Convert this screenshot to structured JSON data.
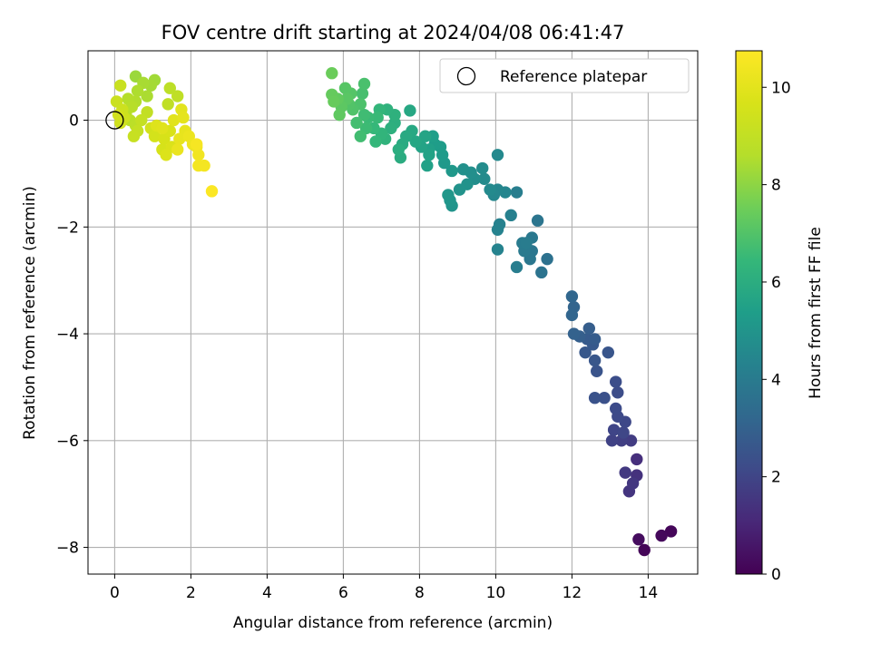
{
  "chart_data": {
    "type": "scatter",
    "title": "FOV centre drift starting at 2024/04/08 06:41:47",
    "xlabel": "Angular distance from reference (arcmin)",
    "ylabel": "Rotation from reference (arcmin)",
    "xlim": [
      -0.7,
      15.3
    ],
    "ylim": [
      -8.5,
      1.3
    ],
    "xticks": [
      0,
      2,
      4,
      6,
      8,
      10,
      12,
      14
    ],
    "yticks": [
      -8,
      -6,
      -4,
      -2,
      0
    ],
    "tick_labels_x": [
      "0",
      "2",
      "4",
      "6",
      "8",
      "10",
      "12",
      "14"
    ],
    "tick_labels_y": [
      "−8",
      "−6",
      "−4",
      "−2",
      "0"
    ],
    "grid": true,
    "legend": {
      "location": "top-right",
      "entries": [
        "Reference platepar"
      ]
    },
    "colorbar": {
      "label": "Hours from first FF file",
      "range": [
        0,
        10.75
      ],
      "ticks": [
        0,
        2,
        4,
        6,
        8,
        10
      ],
      "tick_labels": [
        "0",
        "2",
        "4",
        "6",
        "8",
        "10"
      ],
      "colormap": "viridis"
    },
    "reference_point": {
      "x": 0,
      "y": 0,
      "label": "Reference platepar"
    },
    "points": [
      [
        13.9,
        -8.05,
        0.1
      ],
      [
        14.6,
        -7.7,
        0.15
      ],
      [
        14.35,
        -7.78,
        0.2
      ],
      [
        13.75,
        -7.85,
        0.3
      ],
      [
        13.7,
        -6.35,
        1.3
      ],
      [
        13.7,
        -6.65,
        1.4
      ],
      [
        13.5,
        -6.95,
        1.5
      ],
      [
        13.6,
        -6.8,
        1.55
      ],
      [
        13.4,
        -6.6,
        1.6
      ],
      [
        13.55,
        -6.0,
        1.7
      ],
      [
        13.3,
        -6.0,
        1.8
      ],
      [
        13.05,
        -6.0,
        1.9
      ],
      [
        13.1,
        -5.8,
        2.0
      ],
      [
        13.35,
        -5.85,
        2.05
      ],
      [
        13.4,
        -5.65,
        2.1
      ],
      [
        13.2,
        -5.55,
        2.15
      ],
      [
        13.15,
        -5.4,
        2.2
      ],
      [
        13.2,
        -5.1,
        2.25
      ],
      [
        13.15,
        -4.9,
        2.3
      ],
      [
        12.85,
        -5.2,
        2.4
      ],
      [
        12.6,
        -5.2,
        2.45
      ],
      [
        12.65,
        -4.7,
        2.5
      ],
      [
        12.95,
        -4.35,
        2.55
      ],
      [
        12.6,
        -4.5,
        2.6
      ],
      [
        12.35,
        -4.35,
        2.65
      ],
      [
        12.55,
        -4.2,
        2.7
      ],
      [
        12.4,
        -4.1,
        2.75
      ],
      [
        12.6,
        -4.1,
        2.8
      ],
      [
        12.45,
        -3.9,
        2.85
      ],
      [
        12.2,
        -4.05,
        2.9
      ],
      [
        12.05,
        -4.0,
        3.0
      ],
      [
        12.05,
        -3.5,
        3.1
      ],
      [
        12.0,
        -3.65,
        3.15
      ],
      [
        12.0,
        -3.3,
        3.2
      ],
      [
        11.35,
        -2.6,
        3.6
      ],
      [
        11.2,
        -2.85,
        3.7
      ],
      [
        11.1,
        -1.88,
        3.75
      ],
      [
        10.95,
        -2.45,
        3.8
      ],
      [
        10.9,
        -2.6,
        3.85
      ],
      [
        10.95,
        -2.2,
        3.9
      ],
      [
        10.75,
        -2.45,
        3.95
      ],
      [
        10.7,
        -2.3,
        4.0
      ],
      [
        10.8,
        -2.3,
        4.05
      ],
      [
        10.55,
        -2.75,
        4.1
      ],
      [
        10.55,
        -1.35,
        4.15
      ],
      [
        10.4,
        -1.78,
        4.2
      ],
      [
        10.1,
        -1.95,
        4.25
      ],
      [
        10.05,
        -2.05,
        4.3
      ],
      [
        10.05,
        -2.42,
        4.35
      ],
      [
        10.25,
        -1.35,
        4.4
      ],
      [
        10.05,
        -1.3,
        4.45
      ],
      [
        9.95,
        -1.4,
        4.5
      ],
      [
        10.05,
        -0.65,
        4.55
      ],
      [
        9.85,
        -1.3,
        4.6
      ],
      [
        9.7,
        -1.1,
        4.65
      ],
      [
        9.65,
        -0.9,
        4.7
      ],
      [
        9.45,
        -1.1,
        4.75
      ],
      [
        9.35,
        -0.98,
        4.8
      ],
      [
        9.15,
        -0.92,
        4.85
      ],
      [
        9.25,
        -1.2,
        4.9
      ],
      [
        9.05,
        -1.3,
        4.95
      ],
      [
        8.85,
        -1.6,
        5.0
      ],
      [
        8.8,
        -1.5,
        5.05
      ],
      [
        8.75,
        -1.4,
        5.1
      ],
      [
        8.85,
        -0.95,
        5.15
      ],
      [
        8.65,
        -0.8,
        5.2
      ],
      [
        8.6,
        -0.65,
        5.25
      ],
      [
        8.55,
        -0.5,
        5.3
      ],
      [
        8.4,
        -0.45,
        5.35
      ],
      [
        8.35,
        -0.3,
        5.4
      ],
      [
        8.25,
        -0.55,
        5.45
      ],
      [
        8.2,
        -0.85,
        5.5
      ],
      [
        8.25,
        -0.65,
        5.55
      ],
      [
        8.05,
        -0.5,
        5.6
      ],
      [
        8.15,
        -0.3,
        5.65
      ],
      [
        7.9,
        -0.4,
        5.7
      ],
      [
        7.75,
        0.18,
        5.75
      ],
      [
        7.8,
        -0.2,
        5.8
      ],
      [
        7.65,
        -0.3,
        5.85
      ],
      [
        7.55,
        -0.45,
        5.9
      ],
      [
        7.5,
        -0.7,
        5.95
      ],
      [
        7.45,
        -0.55,
        6.0
      ],
      [
        7.35,
        -0.05,
        6.05
      ],
      [
        7.25,
        -0.15,
        6.1
      ],
      [
        7.35,
        0.1,
        6.15
      ],
      [
        7.15,
        0.2,
        6.2
      ],
      [
        7.1,
        -0.35,
        6.25
      ],
      [
        7.0,
        -0.25,
        6.3
      ],
      [
        6.95,
        0.2,
        6.35
      ],
      [
        6.85,
        -0.4,
        6.4
      ],
      [
        6.8,
        -0.15,
        6.45
      ],
      [
        6.9,
        0.05,
        6.5
      ],
      [
        6.65,
        0.05,
        6.55
      ],
      [
        6.6,
        -0.15,
        6.6
      ],
      [
        6.55,
        0.1,
        6.65
      ],
      [
        6.45,
        -0.3,
        6.7
      ],
      [
        6.35,
        -0.05,
        6.75
      ],
      [
        6.5,
        0.5,
        6.8
      ],
      [
        6.55,
        0.68,
        6.85
      ],
      [
        6.45,
        0.3,
        6.9
      ],
      [
        6.25,
        0.2,
        6.95
      ],
      [
        6.15,
        0.3,
        7.0
      ],
      [
        6.2,
        0.5,
        7.05
      ],
      [
        6.05,
        0.6,
        7.1
      ],
      [
        6.1,
        0.4,
        7.15
      ],
      [
        5.95,
        0.25,
        7.2
      ],
      [
        5.9,
        0.1,
        7.25
      ],
      [
        5.85,
        0.4,
        7.3
      ],
      [
        5.7,
        0.48,
        7.35
      ],
      [
        5.75,
        0.35,
        7.4
      ],
      [
        5.7,
        0.88,
        7.45
      ],
      [
        0.55,
        0.82,
        8.2
      ],
      [
        1.05,
        0.75,
        8.3
      ],
      [
        0.95,
        0.65,
        8.35
      ],
      [
        0.75,
        0.7,
        8.4
      ],
      [
        0.85,
        0.45,
        8.45
      ],
      [
        0.6,
        0.55,
        8.5
      ],
      [
        0.55,
        0.35,
        8.55
      ],
      [
        0.35,
        0.4,
        8.6
      ],
      [
        0.45,
        0.25,
        8.65
      ],
      [
        0.3,
        0.15,
        8.7
      ],
      [
        0.4,
        0.0,
        8.75
      ],
      [
        0.55,
        -0.1,
        8.8
      ],
      [
        1.45,
        0.6,
        8.85
      ],
      [
        1.65,
        0.45,
        8.9
      ],
      [
        1.4,
        0.3,
        8.95
      ],
      [
        0.85,
        0.15,
        9.0
      ],
      [
        0.7,
        0.0,
        9.05
      ],
      [
        0.6,
        -0.2,
        9.1
      ],
      [
        0.5,
        -0.3,
        9.15
      ],
      [
        0.15,
        0.65,
        9.2
      ],
      [
        0.05,
        0.35,
        9.25
      ],
      [
        0.2,
        0.2,
        9.3
      ],
      [
        0.25,
        0.05,
        9.35
      ],
      [
        0.15,
        -0.05,
        9.4
      ],
      [
        0.1,
        0.1,
        9.45
      ],
      [
        0.95,
        -0.15,
        9.5
      ],
      [
        1.05,
        -0.3,
        9.55
      ],
      [
        1.25,
        -0.55,
        9.6
      ],
      [
        1.3,
        -0.35,
        9.65
      ],
      [
        1.45,
        -0.2,
        9.7
      ],
      [
        1.5,
        -0.5,
        9.75
      ],
      [
        1.35,
        -0.65,
        9.8
      ],
      [
        1.1,
        -0.1,
        9.85
      ],
      [
        1.25,
        -0.15,
        9.9
      ],
      [
        1.55,
        0.0,
        9.95
      ],
      [
        1.75,
        0.2,
        10.0
      ],
      [
        1.8,
        0.05,
        10.05
      ],
      [
        1.85,
        -0.2,
        10.1
      ],
      [
        1.7,
        -0.35,
        10.15
      ],
      [
        1.65,
        -0.55,
        10.2
      ],
      [
        1.95,
        -0.3,
        10.25
      ],
      [
        2.05,
        -0.45,
        10.3
      ],
      [
        2.15,
        -0.5,
        10.35
      ],
      [
        2.2,
        -0.65,
        10.4
      ],
      [
        2.2,
        -0.85,
        10.45
      ],
      [
        2.35,
        -0.85,
        10.5
      ],
      [
        2.15,
        -0.45,
        10.55
      ],
      [
        2.55,
        -1.33,
        10.7
      ]
    ]
  },
  "colors": {
    "axis": "#000000",
    "grid": "#b0b0b0",
    "legend_border": "#cccccc"
  }
}
